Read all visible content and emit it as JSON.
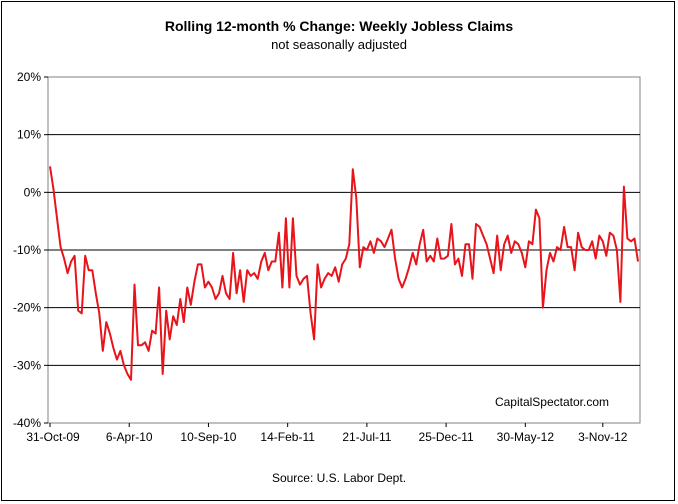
{
  "chart_data": {
    "type": "line",
    "title": "Rolling 12-month %  Change: Weekly Jobless Claims",
    "subtitle": "not seasonally adjusted",
    "source": "Source: U.S. Labor Dept.",
    "watermark": "CapitalSpectator.com",
    "xlabel": "",
    "ylabel": "",
    "ylim": [
      -40,
      20
    ],
    "y_ticks": [
      20,
      10,
      0,
      -10,
      -20,
      -30,
      -40
    ],
    "y_tick_labels": [
      "20%",
      "10%",
      "0%",
      "-10%",
      "-20%",
      "-30%",
      "-40%"
    ],
    "x_tick_labels": [
      "31-Oct-09",
      "6-Apr-10",
      "10-Sep-10",
      "14-Feb-11",
      "21-Jul-11",
      "25-Dec-11",
      "30-May-12",
      "3-Nov-12"
    ],
    "x_tick_positions": [
      0,
      22.5,
      45,
      67.5,
      90,
      112.5,
      135,
      157
    ],
    "grid": "horizontal",
    "line_color": "#e8141b",
    "series": [
      {
        "values": [
          4.5,
          0.5,
          -4.5,
          -9.5,
          -11.5,
          -14,
          -12,
          -11,
          -20.5,
          -21,
          -11,
          -13.5,
          -13.5,
          -17.5,
          -21,
          -27.5,
          -22.5,
          -24.5,
          -27,
          -29,
          -27.5,
          -30,
          -31.5,
          -32.5,
          -16,
          -26.5,
          -26.5,
          -26,
          -27.5,
          -24,
          -24.5,
          -16.5,
          -31.5,
          -20.5,
          -25.5,
          -21.5,
          -23,
          -18.5,
          -22.5,
          -16.5,
          -19.5,
          -15.5,
          -12.5,
          -12.5,
          -16.5,
          -15.5,
          -16.5,
          -18.5,
          -17.5,
          -14.5,
          -17.5,
          -18.5,
          -10.5,
          -17.5,
          -13.5,
          -19,
          -13.5,
          -14.5,
          -14,
          -15,
          -12,
          -10.5,
          -13.5,
          -12,
          -12,
          -7,
          -16.5,
          -4.5,
          -16.5,
          -4.5,
          -14.5,
          -16,
          -15,
          -14.5,
          -21,
          -25.5,
          -12.5,
          -16.5,
          -15,
          -14,
          -14.5,
          -13,
          -15.5,
          -12.5,
          -11.5,
          -9,
          4,
          -1,
          -13,
          -9.5,
          -10,
          -8.5,
          -10.5,
          -8,
          -8.5,
          -9.5,
          -8,
          -6.5,
          -11.5,
          -15,
          -16.5,
          -15,
          -13,
          -10.5,
          -12.5,
          -9,
          -6.5,
          -12,
          -11,
          -12,
          -8,
          -11.5,
          -11.5,
          -11,
          -5.5,
          -12.5,
          -11.5,
          -14.5,
          -9,
          -9,
          -15,
          -5.5,
          -6,
          -7.5,
          -9,
          -11.5,
          -14,
          -7.5,
          -13.5,
          -9,
          -7.5,
          -10.5,
          -8.5,
          -9,
          -10.5,
          -13,
          -8.5,
          -9,
          -3,
          -4.5,
          -20,
          -13.5,
          -10.5,
          -12,
          -9.5,
          -10,
          -6,
          -9.5,
          -9.5,
          -13.5,
          -7,
          -9.5,
          -10,
          -10,
          -8.5,
          -11.5,
          -7.5,
          -8.5,
          -11,
          -7,
          -7.5,
          -10,
          -19,
          1,
          -8,
          -8.5,
          -8,
          -12
        ]
      }
    ]
  }
}
